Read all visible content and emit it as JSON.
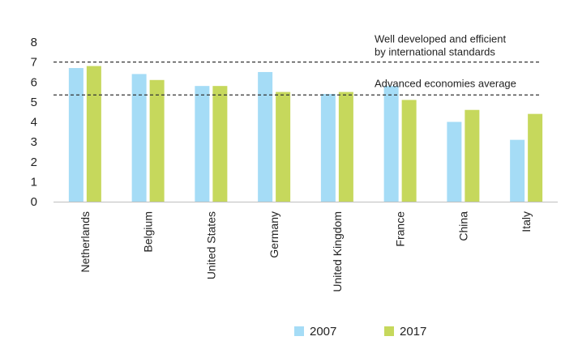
{
  "chart_data": {
    "type": "bar",
    "categories": [
      "Netherlands",
      "Belgium",
      "United States",
      "Germany",
      "United Kingdom",
      "France",
      "China",
      "Italy"
    ],
    "series": [
      {
        "name": "2007",
        "color": "#a5dcf6",
        "values": [
          6.7,
          6.4,
          5.8,
          6.5,
          5.4,
          5.8,
          4.0,
          3.1
        ]
      },
      {
        "name": "2017",
        "color": "#c6d85c",
        "values": [
          6.8,
          6.1,
          5.8,
          5.5,
          5.5,
          5.1,
          4.6,
          4.4
        ]
      }
    ],
    "ylim": [
      0,
      8
    ],
    "yticks": [
      "0",
      "1",
      "2",
      "3",
      "4",
      "5",
      "6",
      "7",
      "8"
    ],
    "grid": false,
    "legend_position": "bottom",
    "reference_lines": [
      {
        "value": 7.0,
        "label_lines": [
          "Well developed and efficient",
          "by international standards"
        ]
      },
      {
        "value": 5.35,
        "label_lines": [
          "Advanced economies average"
        ]
      }
    ]
  }
}
